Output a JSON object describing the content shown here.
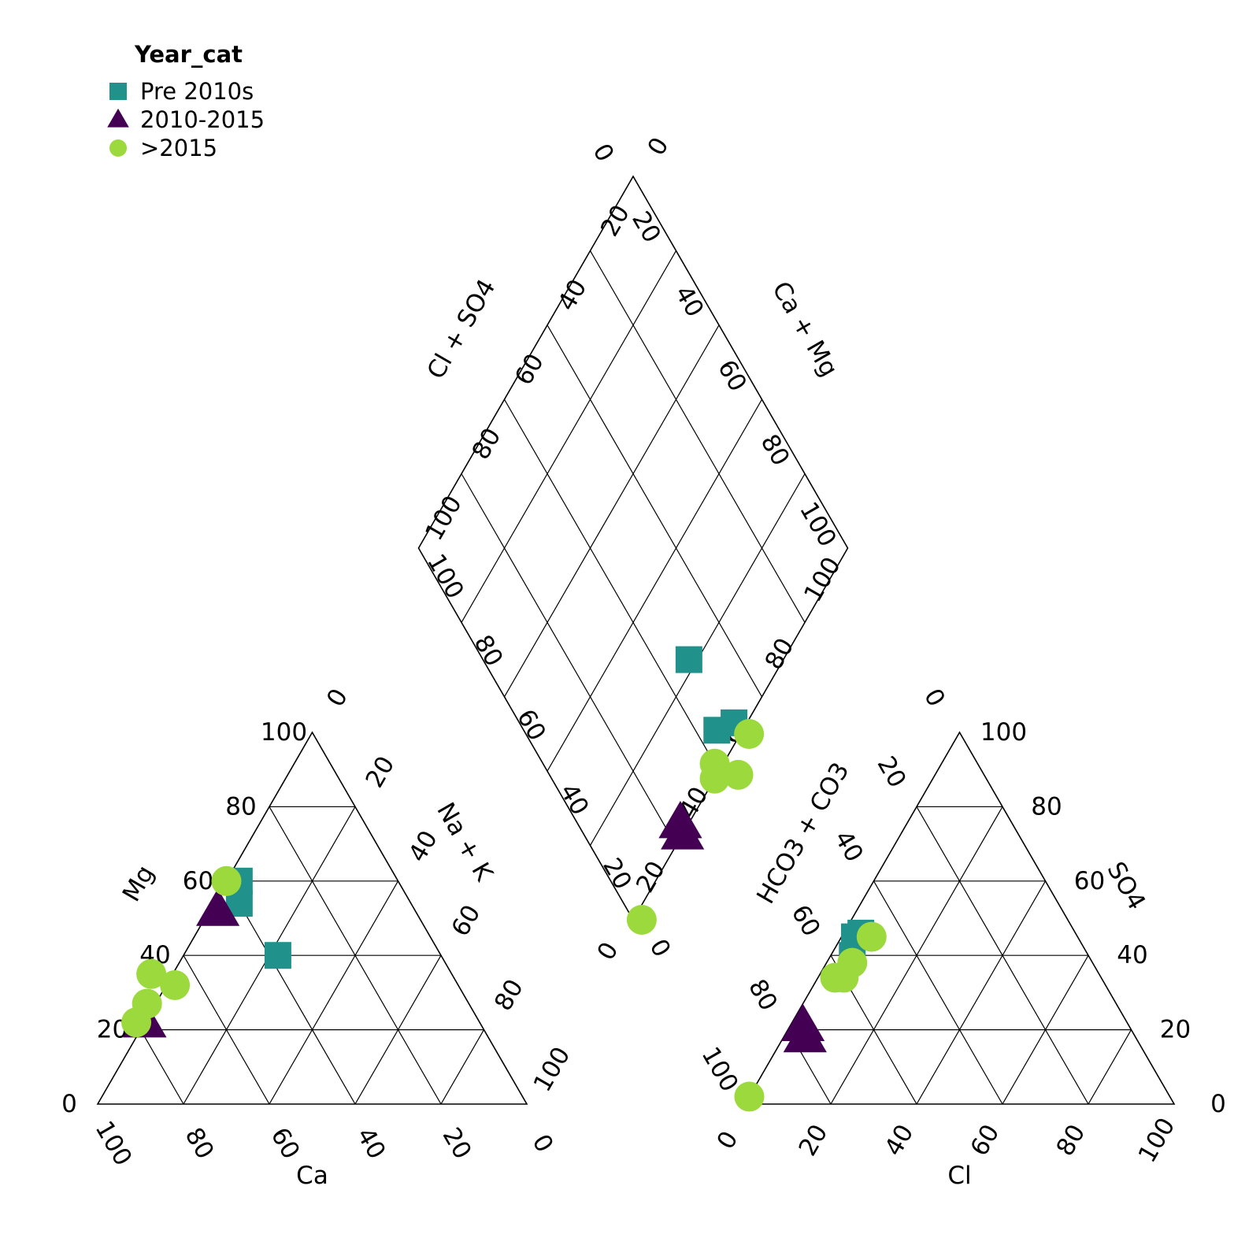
{
  "chart_data": {
    "type": "scatter",
    "subtype": "piper-diagram",
    "legend": {
      "title": "Year_cat",
      "placement": "top-left",
      "entries": [
        {
          "name": "Pre 2010s",
          "marker": "square",
          "color": "#21918c"
        },
        {
          "name": "2010-2015",
          "marker": "triangle",
          "color": "#440154"
        },
        {
          "name": ">2015",
          "marker": "circle",
          "color": "#9bd93c"
        }
      ]
    },
    "cation_triangle": {
      "axis_labels": {
        "bottom": "Ca",
        "left": "Mg",
        "right": "Na + K"
      },
      "ticks": [
        0,
        20,
        40,
        60,
        80,
        100
      ]
    },
    "anion_triangle": {
      "axis_labels": {
        "bottom": "Cl",
        "left": "HCO3 + CO3",
        "right": "SO4"
      },
      "ticks": [
        0,
        20,
        40,
        60,
        80,
        100
      ]
    },
    "diamond": {
      "axis_labels": {
        "upper_left": "Cl + SO4",
        "upper_right": "Ca + Mg"
      },
      "ticks": [
        0,
        20,
        40,
        60,
        80,
        100
      ]
    },
    "samples": [
      {
        "series": "Pre 2010s",
        "Ca": 37,
        "Mg": 60,
        "NaK": 3,
        "Cl": 4,
        "SO4": 46,
        "HCO3CO3": 50
      },
      {
        "series": "Pre 2010s",
        "Ca": 40,
        "Mg": 54,
        "NaK": 6,
        "Cl": 5,
        "SO4": 40,
        "HCO3CO3": 55
      },
      {
        "series": "Pre 2010s",
        "Ca": 38,
        "Mg": 40,
        "NaK": 22,
        "Cl": 3,
        "SO4": 45,
        "HCO3CO3": 52
      },
      {
        "series": "2010-2015",
        "Ca": 46,
        "Mg": 52,
        "NaK": 2,
        "Cl": 3,
        "SO4": 21,
        "HCO3CO3": 76
      },
      {
        "series": "2010-2015",
        "Ca": 78,
        "Mg": 22,
        "NaK": 0,
        "Cl": 5,
        "SO4": 18,
        "HCO3CO3": 77
      },
      {
        "series": ">2015",
        "Ca": 80,
        "Mg": 22,
        "NaK": -2,
        "Cl": 0,
        "SO4": 2,
        "HCO3CO3": 98
      },
      {
        "series": ">2015",
        "Ca": 75,
        "Mg": 27,
        "NaK": -2,
        "Cl": 7,
        "SO4": 45,
        "HCO3CO3": 48
      },
      {
        "series": ">2015",
        "Ca": 70,
        "Mg": 35,
        "NaK": -5,
        "Cl": 6,
        "SO4": 38,
        "HCO3CO3": 56
      },
      {
        "series": ">2015",
        "Ca": 66,
        "Mg": 32,
        "NaK": 2,
        "Cl": 6,
        "SO4": 34,
        "HCO3CO3": 60
      },
      {
        "series": ">2015",
        "Ca": 40,
        "Mg": 60,
        "NaK": 0,
        "Cl": 4,
        "SO4": 34,
        "HCO3CO3": 62
      }
    ]
  }
}
